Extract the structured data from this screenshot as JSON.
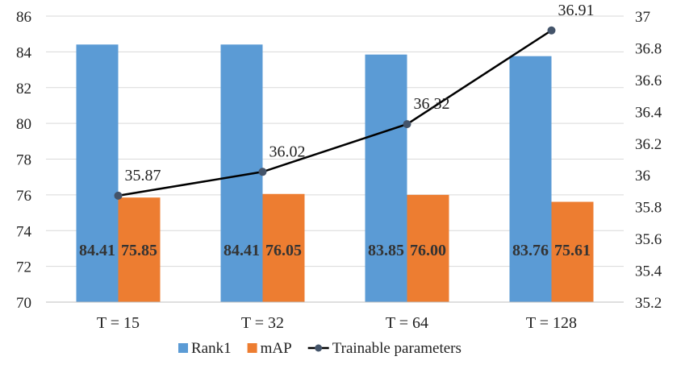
{
  "chart_data": {
    "type": "bar",
    "categories": [
      "T = 15",
      "T = 32",
      "T = 64",
      "T = 128"
    ],
    "series": [
      {
        "name": "Rank1",
        "kind": "bar",
        "axis": "left",
        "color": "#5B9BD5",
        "values": [
          84.41,
          84.41,
          83.85,
          83.76
        ],
        "labels": [
          "84.41",
          "84.41",
          "83.85",
          "83.76"
        ]
      },
      {
        "name": "mAP",
        "kind": "bar",
        "axis": "left",
        "color": "#ED7D31",
        "values": [
          75.85,
          76.05,
          76.0,
          75.61
        ],
        "labels": [
          "75.85",
          "76.05",
          "76.00",
          "75.61"
        ]
      },
      {
        "name": "Trainable parameters",
        "kind": "line",
        "axis": "right",
        "color": "#000000",
        "marker_color": "#44546A",
        "values": [
          35.87,
          36.02,
          36.32,
          36.91
        ],
        "labels": [
          "35.87",
          "36.02",
          "36.32",
          "36.91"
        ]
      }
    ],
    "y_left": {
      "min": 70,
      "max": 86,
      "step": 2,
      "tick_labels": [
        "70",
        "72",
        "74",
        "76",
        "78",
        "80",
        "82",
        "84",
        "86"
      ]
    },
    "y_right": {
      "min": 35.2,
      "max": 37,
      "step": 0.2,
      "tick_labels": [
        "35.2",
        "35.4",
        "35.6",
        "35.8",
        "36",
        "36.2",
        "36.4",
        "36.6",
        "36.8",
        "37"
      ]
    },
    "grid": "horizontal",
    "legend_position": "bottom",
    "title": "",
    "xlabel": "",
    "ylabel": ""
  }
}
